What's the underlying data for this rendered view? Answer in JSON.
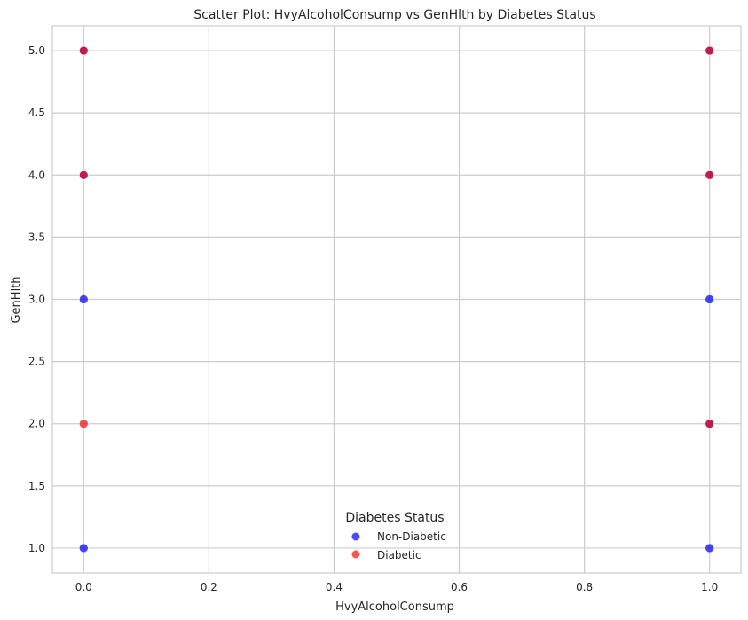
{
  "chart_data": {
    "type": "scatter",
    "title": "Scatter Plot: HvyAlcoholConsump vs GenHlth by Diabetes Status",
    "xlabel": "HvyAlcoholConsump",
    "ylabel": "GenHlth",
    "xlim": [
      -0.05,
      1.05
    ],
    "ylim": [
      0.8,
      5.2
    ],
    "x_ticks": [
      "0.0",
      "0.2",
      "0.4",
      "0.6",
      "0.8",
      "1.0"
    ],
    "x_tick_values": [
      0.0,
      0.2,
      0.4,
      0.6,
      0.8,
      1.0
    ],
    "y_ticks": [
      "1.0",
      "1.5",
      "2.0",
      "2.5",
      "3.0",
      "3.5",
      "4.0",
      "4.5",
      "5.0"
    ],
    "y_tick_values": [
      1.0,
      1.5,
      2.0,
      2.5,
      3.0,
      3.5,
      4.0,
      4.5,
      5.0
    ],
    "grid": true,
    "legend": {
      "title": "Diabetes Status",
      "placement": "lower-center",
      "entries": [
        "Non-Diabetic",
        "Diabetic"
      ]
    },
    "series": [
      {
        "name": "Non-Diabetic",
        "color": "#0000ee",
        "points": [
          [
            0,
            1
          ],
          [
            0,
            3
          ],
          [
            1,
            1
          ],
          [
            1,
            3
          ],
          [
            0,
            4
          ],
          [
            0,
            5
          ],
          [
            1,
            2
          ],
          [
            1,
            4
          ],
          [
            1,
            5
          ]
        ]
      },
      {
        "name": "Diabetic",
        "color": "#ee1111",
        "points": [
          [
            0,
            2
          ],
          [
            0,
            4
          ],
          [
            0,
            5
          ],
          [
            1,
            2
          ],
          [
            1,
            4
          ],
          [
            1,
            5
          ]
        ]
      }
    ]
  },
  "colors": {
    "non_diabetic": "#0000ee",
    "diabetic": "#ee1111",
    "grid": "#cccccc",
    "frame": "#cccccc"
  }
}
